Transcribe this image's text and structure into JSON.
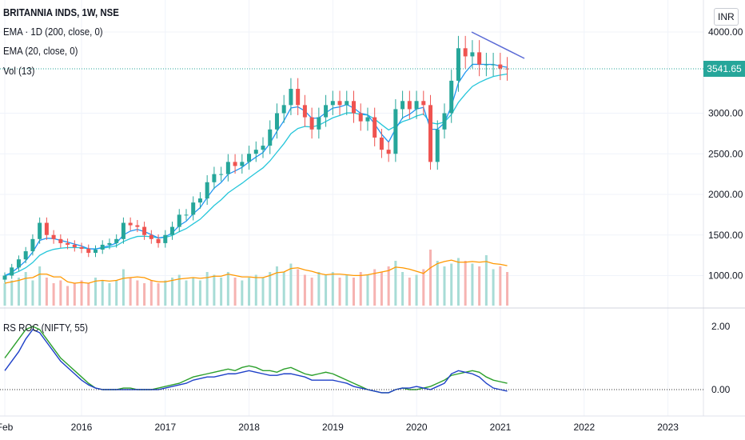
{
  "header": {
    "title": "BRITANNIA INDS, 1W, NSE",
    "ind1": "EMA · 1D (200, close, 0)",
    "ind2": "EMA (20, close, 0)",
    "ind3": "Vol (13)",
    "ind4": "RS ROC (NIFTY, 55)",
    "currency": "INR",
    "last_price": "3541.65"
  },
  "colors": {
    "up": "#26a69a",
    "down": "#ef5350",
    "ema1": "#2196f3",
    "ema2": "#26c6da",
    "volma": "#ff9800",
    "rs1": "#2ca02c",
    "rs2": "#1e40c8",
    "trend": "#5b6bd6"
  },
  "chart_data": [
    {
      "type": "candlestick",
      "title": "BRITANNIA INDS, 1W, NSE",
      "start": "2015-02",
      "interval": "month",
      "close": [
        1000,
        1100,
        1200,
        1300,
        1450,
        1650,
        1500,
        1450,
        1400,
        1380,
        1350,
        1330,
        1280,
        1320,
        1380,
        1400,
        1450,
        1650,
        1620,
        1600,
        1500,
        1450,
        1400,
        1500,
        1600,
        1750,
        1750,
        1900,
        1950,
        2150,
        2250,
        2250,
        2400,
        2350,
        2400,
        2500,
        2550,
        2600,
        2800,
        3000,
        3100,
        3300,
        3100,
        2950,
        2800,
        2950,
        3100,
        3150,
        3100,
        3150,
        3000,
        2900,
        2950,
        2700,
        2550,
        2500,
        3050,
        3150,
        3050,
        3150,
        3100,
        2400,
        2800,
        3000,
        3400,
        3800,
        3700,
        3750,
        3600,
        3600,
        3600,
        3550,
        3541.65
      ],
      "volume": [
        8,
        9,
        10,
        12,
        9,
        14,
        10,
        8,
        9,
        7,
        8,
        9,
        8,
        10,
        9,
        8,
        9,
        13,
        10,
        9,
        8,
        9,
        8,
        9,
        10,
        11,
        9,
        10,
        9,
        12,
        11,
        10,
        12,
        10,
        9,
        10,
        11,
        10,
        12,
        14,
        12,
        15,
        13,
        11,
        10,
        12,
        11,
        12,
        10,
        11,
        10,
        12,
        11,
        13,
        12,
        14,
        16,
        12,
        10,
        11,
        13,
        20,
        16,
        14,
        15,
        17,
        16,
        15,
        14,
        18,
        13,
        14,
        12
      ],
      "yaxis_ticks": [
        "4000.00",
        "3000.00",
        "2500.00",
        "2000.00",
        "1500.00",
        "1000.00"
      ],
      "ylim": [
        700,
        4200
      ]
    },
    {
      "type": "line",
      "title": "RS ROC (NIFTY, 55)",
      "start": "2015-02",
      "interval": "month",
      "series": [
        {
          "name": "RS ROC",
          "values": [
            1.0,
            1.3,
            1.6,
            1.9,
            2.0,
            1.9,
            1.6,
            1.3,
            1.0,
            0.8,
            0.6,
            0.4,
            0.2,
            0.05,
            0.0,
            0.0,
            0.0,
            0.05,
            0.05,
            0.0,
            0.0,
            0.0,
            0.05,
            0.1,
            0.15,
            0.2,
            0.3,
            0.4,
            0.45,
            0.5,
            0.55,
            0.6,
            0.65,
            0.6,
            0.7,
            0.75,
            0.7,
            0.6,
            0.6,
            0.55,
            0.65,
            0.7,
            0.6,
            0.5,
            0.45,
            0.5,
            0.55,
            0.5,
            0.4,
            0.3,
            0.2,
            0.1,
            0.0,
            -0.05,
            -0.1,
            -0.1,
            0.0,
            0.05,
            0.0,
            0.0,
            0.05,
            0.1,
            0.2,
            0.3,
            0.45,
            0.5,
            0.55,
            0.6,
            0.55,
            0.4,
            0.3,
            0.25,
            0.2
          ]
        },
        {
          "name": "RS ROC (NIFTY)",
          "values": [
            0.6,
            0.9,
            1.2,
            1.6,
            1.9,
            1.8,
            1.5,
            1.2,
            0.9,
            0.7,
            0.5,
            0.3,
            0.15,
            0.05,
            0.0,
            0.0,
            0.0,
            0.0,
            0.0,
            0.0,
            0.0,
            0.0,
            0.0,
            0.05,
            0.1,
            0.15,
            0.2,
            0.3,
            0.35,
            0.4,
            0.4,
            0.45,
            0.5,
            0.5,
            0.55,
            0.6,
            0.55,
            0.5,
            0.45,
            0.45,
            0.5,
            0.5,
            0.45,
            0.4,
            0.3,
            0.3,
            0.3,
            0.3,
            0.25,
            0.2,
            0.1,
            0.05,
            0.0,
            -0.05,
            -0.1,
            -0.1,
            0.0,
            0.05,
            0.05,
            0.1,
            0.05,
            0.0,
            0.1,
            0.2,
            0.5,
            0.6,
            0.55,
            0.5,
            0.4,
            0.2,
            0.05,
            0.0,
            -0.05
          ]
        }
      ],
      "yaxis_ticks": [
        "2.00",
        "0.00"
      ],
      "ylim": [
        -0.3,
        2.3
      ]
    }
  ],
  "xaxis": {
    "ticks": [
      "Feb",
      "2016",
      "2017",
      "2018",
      "2019",
      "2020",
      "2021",
      "2022",
      "2023"
    ]
  }
}
